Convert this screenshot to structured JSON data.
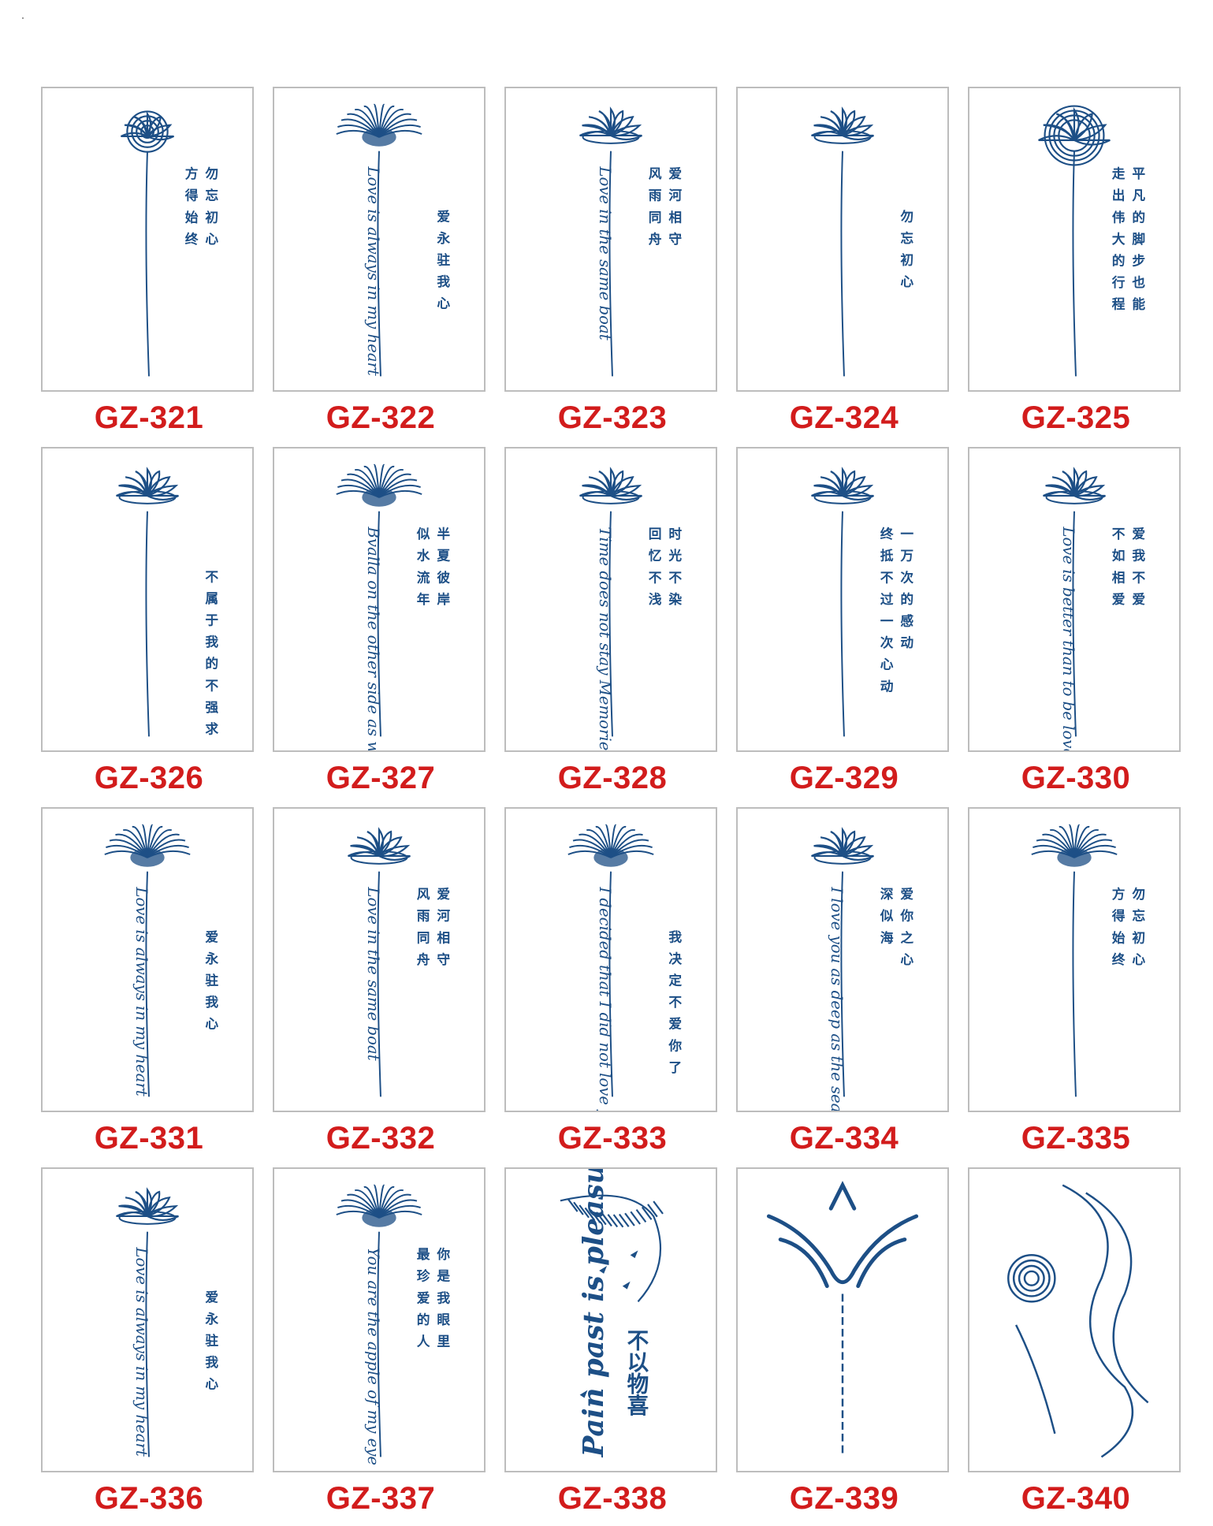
{
  "products": [
    {
      "code": "GZ-321",
      "motif": "rose",
      "script": "",
      "cjk": [
        "勿忘初心",
        "方得始终"
      ]
    },
    {
      "code": "GZ-322",
      "motif": "spider",
      "script": "Love is always in my heart",
      "cjk": [
        "爱永驻我心"
      ]
    },
    {
      "code": "GZ-323",
      "motif": "lotus",
      "script": "Love in the same boat",
      "cjk": [
        "爱河相守",
        "风雨同舟"
      ]
    },
    {
      "code": "GZ-324",
      "motif": "lotus",
      "script": "",
      "cjk": [
        "勿忘初心"
      ]
    },
    {
      "code": "GZ-325",
      "motif": "peony",
      "script": "",
      "cjk": [
        "平凡的脚步也能",
        "走出伟大的行程"
      ]
    },
    {
      "code": "GZ-326",
      "motif": "lotus",
      "script": "",
      "cjk": [
        "不属于我的不强求"
      ]
    },
    {
      "code": "GZ-327",
      "motif": "spider",
      "script": "Bvalla on the other side as water passes",
      "cjk": [
        "半夏彼岸",
        "似水流年"
      ]
    },
    {
      "code": "GZ-328",
      "motif": "lotus",
      "script": "Time does not stay Memories do not fade",
      "cjk": [
        "时光不染",
        "回忆不浅"
      ]
    },
    {
      "code": "GZ-329",
      "motif": "lotus",
      "script": "",
      "cjk": [
        "一万次的感动",
        "终抵不过一次心动"
      ]
    },
    {
      "code": "GZ-330",
      "motif": "lotus",
      "script": "Love is better than to be loved",
      "cjk": [
        "爱我不爱",
        "不如相爱"
      ]
    },
    {
      "code": "GZ-331",
      "motif": "spider",
      "script": "Love is always in my heart",
      "cjk": [
        "爱永驻我心"
      ]
    },
    {
      "code": "GZ-332",
      "motif": "lotus",
      "script": "Love in the same boat",
      "cjk": [
        "爱河相守",
        "风雨同舟"
      ]
    },
    {
      "code": "GZ-333",
      "motif": "spider",
      "script": "I decided that I did not love you",
      "cjk": [
        "我决定不爱你了"
      ]
    },
    {
      "code": "GZ-334",
      "motif": "lotus",
      "script": "I love you as deep as the sea",
      "cjk": [
        "爱你之心",
        "深似海"
      ]
    },
    {
      "code": "GZ-335",
      "motif": "spider",
      "script": "",
      "cjk": [
        "勿忘初心",
        "方得始终"
      ]
    },
    {
      "code": "GZ-336",
      "motif": "lotus",
      "script": "Love is always in my heart",
      "cjk": [
        "爱永驻我心"
      ]
    },
    {
      "code": "GZ-337",
      "motif": "spider",
      "script": "You are the apple of my eye",
      "cjk": [
        "你是我眼里",
        "最珍爱的人"
      ]
    },
    {
      "code": "GZ-338",
      "motif": "feather",
      "script": "Pain past is pleasure",
      "cjk": [
        "不以物喜"
      ]
    },
    {
      "code": "GZ-339",
      "motif": "tribal",
      "script": "",
      "cjk": []
    },
    {
      "code": "GZ-340",
      "motif": "rose-lettering",
      "script": "",
      "cjk": []
    }
  ],
  "colors": {
    "ink": "#1d4f86",
    "code": "#d21c1c",
    "border": "#bdbdbd"
  }
}
